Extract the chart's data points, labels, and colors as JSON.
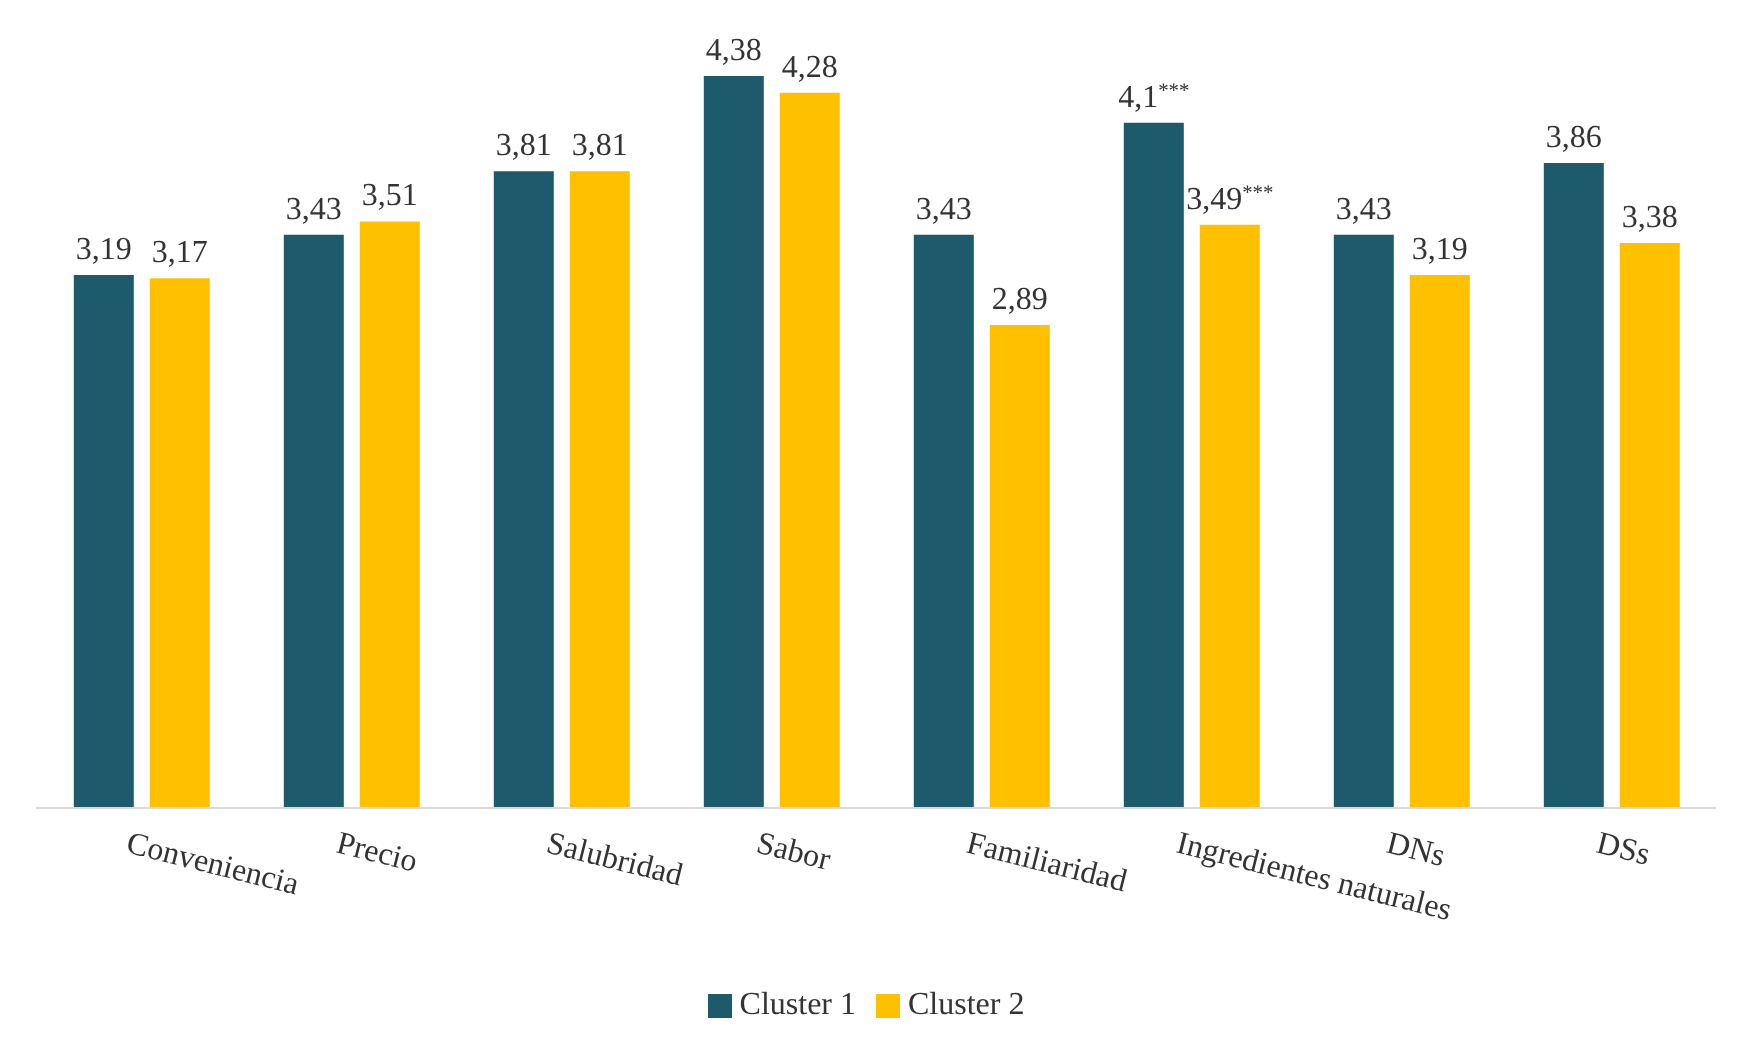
{
  "chart_data": {
    "type": "bar",
    "categories": [
      "Conveniencia",
      "Precio",
      "Salubridad",
      "Sabor",
      "Familiaridad",
      "Ingredientes naturales",
      "DNs",
      "DSs"
    ],
    "series": [
      {
        "name": "Cluster 1",
        "color": "#1d5a6b",
        "values": [
          3.19,
          3.43,
          3.81,
          4.38,
          3.43,
          4.1,
          3.43,
          3.86
        ],
        "value_labels": [
          "3,19",
          "3,43",
          "3,81",
          "4,38",
          "3,43",
          "4,1$^{***}$",
          "3,43",
          "3,86"
        ]
      },
      {
        "name": "Cluster 2",
        "color": "#ffc000",
        "values": [
          3.17,
          3.51,
          3.81,
          4.28,
          2.89,
          3.49,
          3.19,
          3.38
        ],
        "value_labels": [
          "3,17",
          "3,51",
          "3,81",
          "4,28",
          "2,89",
          "3,49$^{***}$",
          "3,19",
          "3,38"
        ]
      }
    ],
    "grid": false,
    "legend": "bottom",
    "tick_labels": "x"
  }
}
